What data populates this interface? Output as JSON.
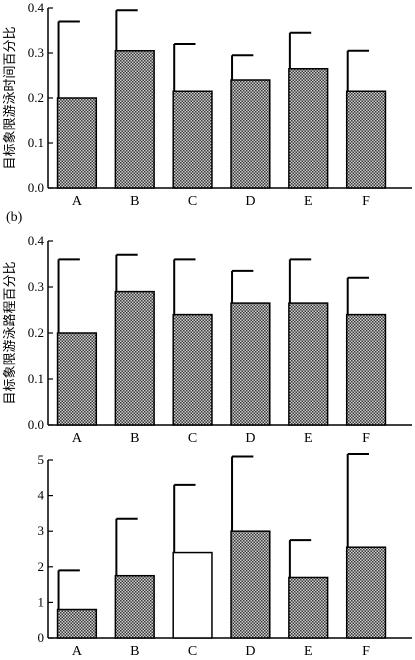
{
  "chart_data": [
    {
      "type": "bar",
      "panel_label": "",
      "ylabel": "目标象限游泳时间百分比",
      "xlabel": "",
      "ylim": [
        0,
        0.4
      ],
      "yticks": [
        "0.0",
        "0.1",
        "0.2",
        "0.3",
        "0.4"
      ],
      "categories": [
        "A",
        "B",
        "C",
        "D",
        "E",
        "F"
      ],
      "values": [
        0.2,
        0.305,
        0.215,
        0.24,
        0.265,
        0.215
      ],
      "error_upper": [
        0.37,
        0.395,
        0.32,
        0.295,
        0.345,
        0.305
      ],
      "bar_fill": [
        "pattern",
        "pattern",
        "pattern",
        "pattern",
        "pattern",
        "pattern"
      ],
      "grid": false,
      "legend": "none"
    },
    {
      "type": "bar",
      "panel_label": "(b)",
      "ylabel": "目标象限游泳路程百分比",
      "xlabel": "",
      "ylim": [
        0,
        0.4
      ],
      "yticks": [
        "0.0",
        "0.1",
        "0.2",
        "0.3",
        "0.4"
      ],
      "categories": [
        "A",
        "B",
        "C",
        "D",
        "E",
        "F"
      ],
      "values": [
        0.2,
        0.29,
        0.24,
        0.265,
        0.265,
        0.24
      ],
      "error_upper": [
        0.36,
        0.37,
        0.36,
        0.335,
        0.36,
        0.32
      ],
      "bar_fill": [
        "pattern",
        "pattern",
        "pattern",
        "pattern",
        "pattern",
        "pattern"
      ],
      "grid": false,
      "legend": "none"
    },
    {
      "type": "bar",
      "panel_label": "",
      "ylabel": "",
      "xlabel": "",
      "ylim": [
        0,
        5
      ],
      "yticks": [
        "0",
        "1",
        "2",
        "3",
        "4",
        "5"
      ],
      "categories": [
        "A",
        "B",
        "C",
        "D",
        "E",
        "F"
      ],
      "values": [
        0.8,
        1.75,
        2.4,
        3.0,
        1.7,
        2.55
      ],
      "error_upper": [
        1.9,
        3.35,
        4.3,
        5.1,
        2.75,
        5.2
      ],
      "bar_fill": [
        "pattern",
        "pattern",
        "white",
        "pattern",
        "pattern",
        "pattern"
      ],
      "grid": false,
      "legend": "none"
    }
  ],
  "colors": {
    "axis": "#000000",
    "bar_pattern_dark": "#3a3a3a",
    "bar_pattern_light": "#cfcfcf",
    "bar_white": "#ffffff"
  }
}
